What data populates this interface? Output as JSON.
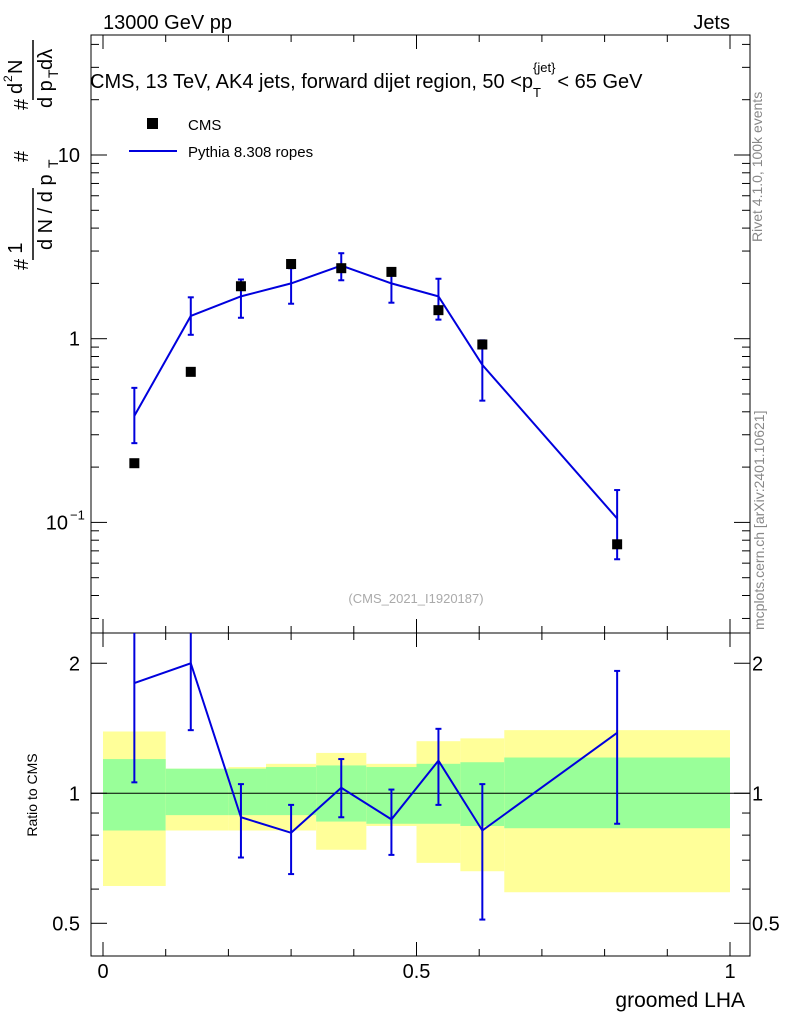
{
  "header": {
    "left": "13000 GeV pp",
    "right": "Jets"
  },
  "side_labels": {
    "rivet": "Rivet 4.1.0,  100k events",
    "mcplots": "mcplots.cern.ch [arXiv:2401.10621]"
  },
  "chart_data": {
    "type": "line",
    "title": "CMS, 13 TeV, AK4 jets, forward dijet region, 50 <p_T^{jet}< 65 GeV",
    "title_parts": {
      "main": "CMS, 13 TeV, AK4 jets, forward dijet region, 50 <p",
      "sub": "T",
      "sup": "{jet}",
      "tail": "< 65 GeV"
    },
    "watermark": "(CMS_2021_I1920187)",
    "xlabel": "groomed LHA",
    "ylabel_main": "1/N dN/dp_T d^2N/dp_T dλ",
    "ylabel_ratio": "Ratio to CMS",
    "xlim": [
      0,
      1
    ],
    "x_ticks": [
      "0",
      "0.5",
      "1"
    ],
    "ylim_main": [
      0.025,
      45
    ],
    "ylog": true,
    "y_ticks_main": [
      {
        "v": 10,
        "base": "10",
        "exp": ""
      },
      {
        "v": 1,
        "base": "1",
        "exp": ""
      },
      {
        "v": 0.1,
        "base": "10",
        "exp": "−1"
      }
    ],
    "ylim_ratio": [
      0.42,
      2.35
    ],
    "y_ticks_ratio": [
      "2",
      "1",
      "0.5"
    ],
    "legend": [
      {
        "name": "CMS",
        "marker": "square"
      },
      {
        "name": "Pythia 8.308 ropes",
        "marker": "line"
      }
    ],
    "bins": [
      [
        0.0,
        0.1
      ],
      [
        0.1,
        0.2
      ],
      [
        0.2,
        0.26
      ],
      [
        0.26,
        0.34
      ],
      [
        0.34,
        0.42
      ],
      [
        0.42,
        0.5
      ],
      [
        0.5,
        0.57
      ],
      [
        0.57,
        0.64
      ],
      [
        0.64,
        1.0
      ]
    ],
    "data": {
      "name": "CMS",
      "x": [
        0.05,
        0.14,
        0.22,
        0.3,
        0.38,
        0.46,
        0.535,
        0.605,
        0.82
      ],
      "y": [
        0.21,
        0.66,
        1.93,
        2.55,
        2.42,
        2.31,
        1.43,
        0.93,
        0.076
      ]
    },
    "mc": {
      "name": "Pythia 8.308 ropes",
      "x": [
        0.05,
        0.14,
        0.22,
        0.3,
        0.38,
        0.46,
        0.535,
        0.605,
        0.82
      ],
      "y": [
        0.38,
        1.33,
        1.7,
        2.0,
        2.5,
        2.0,
        1.7,
        0.72,
        0.105
      ],
      "err_lo": [
        0.27,
        1.05,
        1.3,
        1.55,
        2.08,
        1.57,
        1.27,
        0.46,
        0.063
      ],
      "err_hi": [
        0.54,
        1.68,
        2.1,
        2.42,
        2.92,
        2.42,
        2.12,
        0.98,
        0.15
      ]
    },
    "ratio": {
      "y": [
        1.8,
        2.0,
        0.88,
        0.81,
        1.03,
        0.87,
        1.19,
        0.82,
        1.38
      ],
      "err_lo": [
        1.06,
        1.4,
        0.71,
        0.65,
        0.88,
        0.72,
        0.94,
        0.51,
        0.85
      ],
      "err_hi": [
        2.35,
        2.35,
        1.05,
        0.94,
        1.2,
        1.02,
        1.41,
        1.05,
        1.92
      ],
      "band_inner": [
        [
          0.82,
          1.2
        ],
        [
          0.89,
          1.14
        ],
        [
          0.89,
          1.14
        ],
        [
          0.89,
          1.15
        ],
        [
          0.86,
          1.16
        ],
        [
          0.85,
          1.15
        ],
        [
          0.85,
          1.17
        ],
        [
          0.84,
          1.18
        ],
        [
          0.83,
          1.21
        ]
      ],
      "band_outer": [
        [
          0.61,
          1.39
        ],
        [
          0.82,
          1.14
        ],
        [
          0.82,
          1.15
        ],
        [
          0.82,
          1.17
        ],
        [
          0.74,
          1.24
        ],
        [
          0.84,
          1.17
        ],
        [
          0.69,
          1.32
        ],
        [
          0.66,
          1.34
        ],
        [
          0.59,
          1.4
        ]
      ]
    }
  }
}
